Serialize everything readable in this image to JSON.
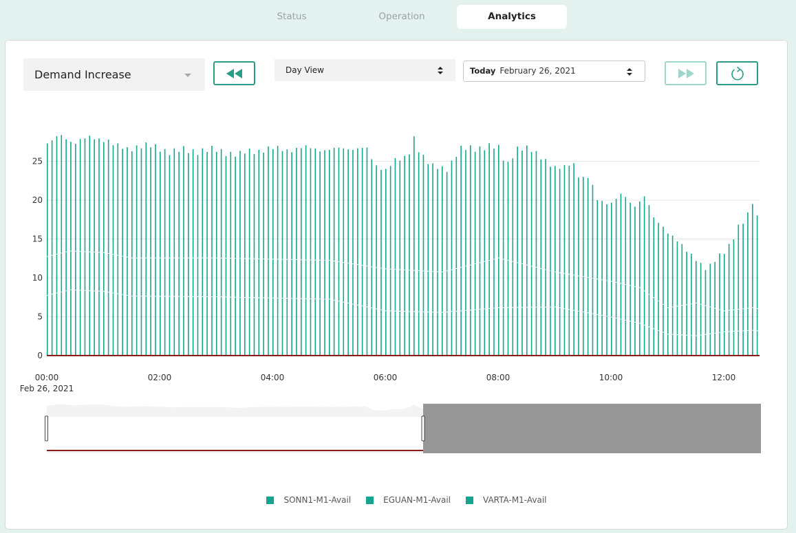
{
  "tabs": [
    {
      "label": "Status",
      "active": false
    },
    {
      "label": "Operation",
      "active": false
    },
    {
      "label": "Analytics",
      "active": true
    }
  ],
  "toolbar": {
    "metric_select": "Demand Increase",
    "view_select": "Day View",
    "date_prefix": "Today",
    "date_value": "February 26, 2021",
    "prev_icon": "rewind-icon",
    "next_icon": "fast-forward-icon",
    "refresh_icon": "refresh-icon"
  },
  "colors": {
    "accent": "#2a9b86",
    "bar": "#14a58e",
    "baseline": "#8b1a1a",
    "navigator_mask": "#969696"
  },
  "chart_data": {
    "type": "bar",
    "ylim": [
      0,
      28
    ],
    "yticks": [
      0,
      5,
      10,
      15,
      20,
      25
    ],
    "xticks": [
      "00:00",
      "02:00",
      "04:00",
      "06:00",
      "08:00",
      "10:00",
      "12:00"
    ],
    "xstart_label": "Feb 26, 2021",
    "interval_minutes": 5,
    "series": [
      {
        "name": "SONN1-M1-Avail",
        "color": "#14a58e"
      },
      {
        "name": "EGUAN-M1-Avail",
        "color": "#14a58e"
      },
      {
        "name": "VARTA-M1-Avail",
        "color": "#14a58e"
      }
    ],
    "total_profile": [
      [
        0,
        27.3
      ],
      [
        0.1,
        27.5
      ],
      [
        0.2,
        28.3
      ],
      [
        0.3,
        28.2
      ],
      [
        0.4,
        27.7
      ],
      [
        0.5,
        27.5
      ],
      [
        0.7,
        27.9
      ],
      [
        0.85,
        28.0
      ],
      [
        1.0,
        27.9
      ],
      [
        1.1,
        27.6
      ],
      [
        1.2,
        26.9
      ],
      [
        1.4,
        26.6
      ],
      [
        1.6,
        27.0
      ],
      [
        1.8,
        26.9
      ],
      [
        2.0,
        26.7
      ],
      [
        2.2,
        26.2
      ],
      [
        2.4,
        26.4
      ],
      [
        2.7,
        26.4
      ],
      [
        3.0,
        26.4
      ],
      [
        3.2,
        26.2
      ],
      [
        3.4,
        25.8
      ],
      [
        3.6,
        26.3
      ],
      [
        3.9,
        26.6
      ],
      [
        4.2,
        26.5
      ],
      [
        4.5,
        26.7
      ],
      [
        4.8,
        26.6
      ],
      [
        5.1,
        26.5
      ],
      [
        5.3,
        26.6
      ],
      [
        5.45,
        26.8
      ],
      [
        5.65,
        26.7
      ],
      [
        5.8,
        24.4
      ],
      [
        6.0,
        24.1
      ],
      [
        6.15,
        25.1
      ],
      [
        6.3,
        25.0
      ],
      [
        6.45,
        26.5
      ],
      [
        6.5,
        28.2
      ],
      [
        6.6,
        26.3
      ],
      [
        6.8,
        24.2
      ],
      [
        7.1,
        24.2
      ],
      [
        7.3,
        26.4
      ],
      [
        7.5,
        26.7
      ],
      [
        7.8,
        26.9
      ],
      [
        8.0,
        26.6
      ],
      [
        8.15,
        24.6
      ],
      [
        8.3,
        26.6
      ],
      [
        8.6,
        26.4
      ],
      [
        8.75,
        25.8
      ],
      [
        9.0,
        23.9
      ],
      [
        9.2,
        24.3
      ],
      [
        9.3,
        25.4
      ],
      [
        9.45,
        22.6
      ],
      [
        9.6,
        22.8
      ],
      [
        9.75,
        20.2
      ],
      [
        10.0,
        19.6
      ],
      [
        10.2,
        20.7
      ],
      [
        10.4,
        19.3
      ],
      [
        10.5,
        20.0
      ],
      [
        10.6,
        20.5
      ],
      [
        10.75,
        17.5
      ],
      [
        10.9,
        16.8
      ],
      [
        11.1,
        15.3
      ],
      [
        11.3,
        13.5
      ],
      [
        11.5,
        12.6
      ],
      [
        11.7,
        11.0
      ],
      [
        11.85,
        12.2
      ],
      [
        12.05,
        13.9
      ],
      [
        12.25,
        16.5
      ],
      [
        12.4,
        17.5
      ],
      [
        12.5,
        19.8
      ],
      [
        12.6,
        17.5
      ],
      [
        12.65,
        15.0
      ]
    ],
    "sonn1_level": [
      [
        0,
        12.8
      ],
      [
        0.4,
        13.5
      ],
      [
        1.0,
        13.3
      ],
      [
        1.5,
        12.6
      ],
      [
        3.0,
        12.6
      ],
      [
        5.0,
        12.3
      ],
      [
        6.0,
        11.2
      ],
      [
        7.0,
        10.8
      ],
      [
        8.0,
        12.6
      ],
      [
        9.0,
        10.8
      ],
      [
        10.0,
        9.6
      ],
      [
        10.5,
        8.8
      ],
      [
        11.0,
        6.2
      ],
      [
        11.5,
        6.8
      ],
      [
        12.0,
        5.8
      ],
      [
        12.5,
        6.2
      ],
      [
        12.65,
        6.0
      ]
    ],
    "eguan_level": [
      [
        0,
        7.8
      ],
      [
        0.4,
        8.5
      ],
      [
        1.0,
        8.3
      ],
      [
        1.5,
        7.7
      ],
      [
        3.0,
        7.6
      ],
      [
        5.0,
        7.3
      ],
      [
        6.0,
        5.8
      ],
      [
        7.0,
        5.6
      ],
      [
        8.0,
        6.2
      ],
      [
        9.0,
        6.3
      ],
      [
        10.0,
        5.0
      ],
      [
        10.5,
        4.2
      ],
      [
        11.0,
        2.8
      ],
      [
        11.5,
        2.6
      ],
      [
        12.0,
        3.1
      ],
      [
        12.5,
        3.3
      ],
      [
        12.65,
        3.2
      ]
    ]
  },
  "navigator": {
    "selected_fraction": 0.527
  }
}
